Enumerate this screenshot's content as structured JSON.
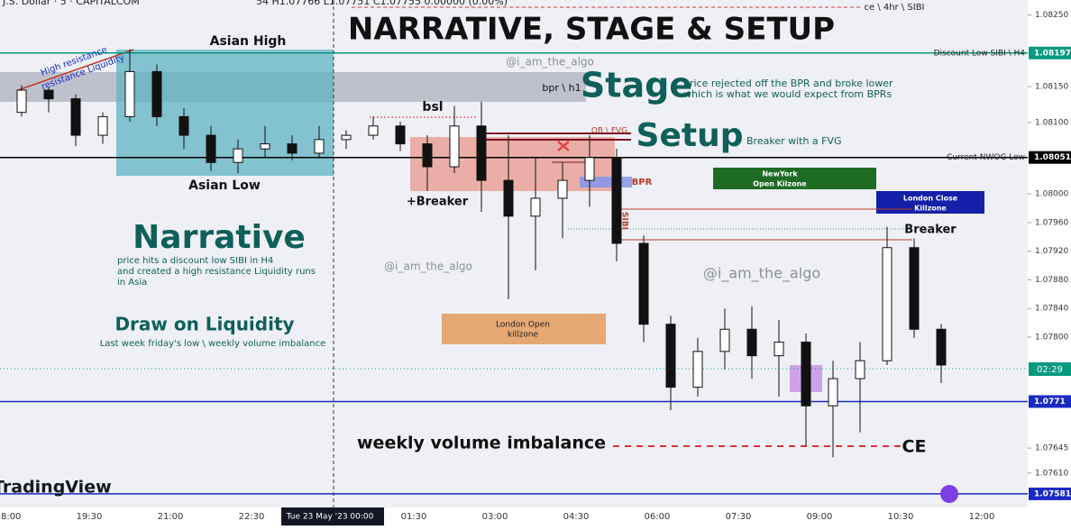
{
  "chart_data": {
    "type": "candlestick",
    "title": "NARRATIVE, STAGE & SETUP",
    "symbol": "J.S. Dollar · 5 · CAPITALCOM",
    "ohlc_readout": "54 H1.07766 L1.07751 C1.07755 0.00000 (0.00%)",
    "watermark": "TradingView",
    "countdown": "02:29",
    "x": [
      "18:00",
      "18:30",
      "19:00",
      "19:30",
      "20:00",
      "20:30",
      "21:00",
      "21:30",
      "22:00",
      "22:30",
      "23:00",
      "23:30",
      "00:00",
      "00:30",
      "01:00",
      "01:30",
      "02:00",
      "02:30",
      "03:00",
      "03:30",
      "04:00",
      "04:30",
      "05:00",
      "05:30",
      "06:00",
      "06:30",
      "07:00",
      "07:30",
      "08:00",
      "08:30",
      "09:00",
      "09:30",
      "10:00",
      "10:30",
      "11:00"
    ],
    "open": [
      1.08114,
      1.08145,
      1.08133,
      1.08082,
      1.08108,
      1.08171,
      1.08108,
      1.08082,
      1.08044,
      1.08063,
      1.0807,
      1.08057,
      1.08076,
      1.08082,
      1.08095,
      1.0807,
      1.08038,
      1.08095,
      1.08019,
      1.07969,
      1.07994,
      1.08019,
      1.08051,
      1.07931,
      1.07818,
      1.0773,
      1.0778,
      1.07811,
      1.07774,
      1.07793,
      1.07704,
      1.07742,
      1.07767,
      1.07925,
      1.07811
    ],
    "high": [
      1.08152,
      1.08149,
      1.08139,
      1.08114,
      1.08202,
      1.08181,
      1.0812,
      1.08095,
      1.08076,
      1.08095,
      1.08082,
      1.08095,
      1.08089,
      1.08108,
      1.08101,
      1.08082,
      1.08123,
      1.08129,
      1.08082,
      1.08051,
      1.08044,
      1.08082,
      1.08063,
      1.07942,
      1.0783,
      1.07799,
      1.0784,
      1.07843,
      1.07824,
      1.07805,
      1.07767,
      1.07793,
      1.07954,
      1.07938,
      1.07818
    ],
    "low": [
      1.08108,
      1.08114,
      1.08067,
      1.0807,
      1.08101,
      1.08095,
      1.08063,
      1.08032,
      1.08029,
      1.08051,
      1.08047,
      1.08051,
      1.08063,
      1.08076,
      1.0806,
      1.08004,
      1.08029,
      1.07975,
      1.07853,
      1.07893,
      1.07938,
      1.07982,
      1.07906,
      1.07793,
      1.07698,
      1.07717,
      1.07755,
      1.07742,
      1.07717,
      1.07648,
      1.07632,
      1.07667,
      1.07761,
      1.07799,
      1.07736
    ],
    "close": [
      1.08145,
      1.08133,
      1.08082,
      1.08108,
      1.08171,
      1.08108,
      1.08082,
      1.08044,
      1.08063,
      1.0807,
      1.08057,
      1.08076,
      1.08082,
      1.08095,
      1.0807,
      1.08038,
      1.08095,
      1.08019,
      1.07969,
      1.07994,
      1.08019,
      1.08051,
      1.07931,
      1.07818,
      1.0773,
      1.0778,
      1.07811,
      1.07774,
      1.07793,
      1.07704,
      1.07742,
      1.07767,
      1.07925,
      1.07811,
      1.07761
    ],
    "ylim": [
      1.07562,
      1.08271
    ],
    "yticks": [
      {
        "value": 1.0825,
        "label": "1.08250"
      },
      {
        "value": 1.0815,
        "label": "1.08150"
      },
      {
        "value": 1.081,
        "label": "1.08100"
      },
      {
        "value": 1.08,
        "label": "1.08000"
      },
      {
        "value": 1.0796,
        "label": "1.07960"
      },
      {
        "value": 1.0792,
        "label": "1.07920"
      },
      {
        "value": 1.0788,
        "label": "1.07880"
      },
      {
        "value": 1.0784,
        "label": "1.07840"
      },
      {
        "value": 1.078,
        "label": "1.07800"
      },
      1.07645,
      {
        "value": 1.0761,
        "label": "1.07610"
      }
    ],
    "xticks": [
      "18:00",
      "19:30",
      "21:00",
      "22:30",
      "Tue 23 May '23  00:00",
      "01:30",
      "03:00",
      "04:30",
      "06:00",
      "07:30",
      "09:00",
      "10:30",
      "12:00"
    ],
    "price_lines": [
      {
        "label": "Discount Low SIBI \\ H4",
        "value": 1.08197,
        "color": "#089981"
      },
      {
        "label": "Current NWOG Low",
        "value": 1.08051,
        "color": "#000000"
      },
      {
        "value": 1.0771,
        "color": "#1a2bc4"
      },
      {
        "value": 1.07581,
        "color": "#1a2bc4"
      }
    ],
    "annotations": [
      "Asian High",
      "Asian Low",
      "bpr \\ h1",
      "@i_am_the_algo",
      "Stage",
      "price rejected off the BPR and broke lower",
      "which is what we would expect from BPRs",
      "bsl",
      "OB \\ FVG",
      "Setup",
      "Breaker with a FVG",
      "+Breaker",
      "BPR",
      "SIBI",
      "NewYork",
      "Open Kilzone",
      "London Close",
      "Killzone",
      "Breaker",
      "Narrative",
      "price hits a discount low SIBI in H4",
      "and created a high resistance Liquidity runs",
      "in Asia",
      "@i_am_the_algo",
      "@i_am_the_algo",
      "London Open",
      "killzone",
      "Draw on Liquidity",
      "Last week friday's low \\ weekly volume imbalance",
      "weekly volume imbalance",
      "CE",
      "High resistance",
      "resistance Liquidity",
      "ce \\ 4hr \\ SIBI"
    ]
  }
}
